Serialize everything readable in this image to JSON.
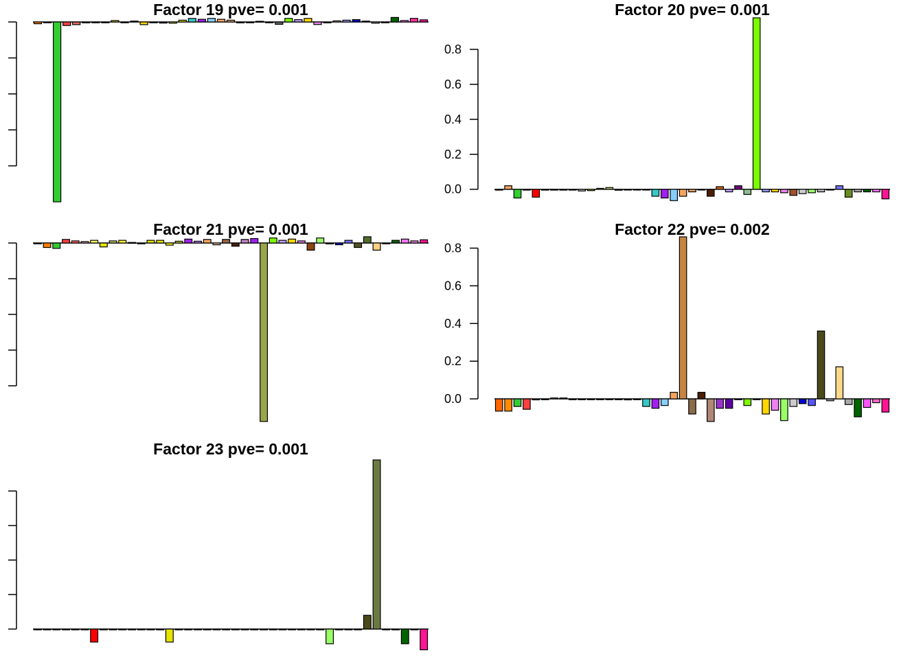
{
  "chart_data": [
    {
      "type": "bar",
      "title": "Factor 19 pve= 0.001",
      "ylim": [
        -1.0,
        0.0
      ],
      "yticks": [],
      "ytick_positions": [
        0.0,
        -0.2,
        -0.4,
        -0.6,
        -0.8
      ],
      "values": [
        -0.01,
        0.0,
        -1.0,
        -0.02,
        -0.015,
        -0.005,
        0.0,
        -0.003,
        0.008,
        -0.003,
        0.005,
        -0.015,
        -0.004,
        -0.006,
        -0.007,
        0.01,
        0.02,
        0.015,
        0.02,
        0.015,
        0.01,
        -0.005,
        0.0,
        0.004,
        0.0,
        -0.013,
        0.02,
        0.013,
        0.02,
        -0.014,
        -0.005,
        0.006,
        0.01,
        0.013,
        0.005,
        -0.007,
        0.0,
        0.025,
        0.008,
        0.02,
        0.012
      ],
      "colors": [
        "#ff7f00",
        "#ff9933",
        "#32cd32",
        "#ff4040",
        "#e07060",
        "#d2b48c",
        "#f5e6b0",
        "#e8b060",
        "#cccc33",
        "#d2c4a0",
        "#b8b8b8",
        "#ffd700",
        "#999999",
        "#444444",
        "#e5e500",
        "#cccc00",
        "#36c7c7",
        "#a020f0",
        "#87cefa",
        "#f4a460",
        "#e8a060",
        "#555555",
        "#cccccc",
        "#999966",
        "#444444",
        "#666666",
        "#7cfc00",
        "#bfa0ff",
        "#ffd700",
        "#ee82ee",
        "#cccccc",
        "#eeddcc",
        "#9999ff",
        "#0000cd",
        "#7777ff",
        "#aaaaaa",
        "#333333",
        "#006400",
        "#ff77ff",
        "#ff3399",
        "#ff1493"
      ]
    },
    {
      "type": "bar",
      "title": "Factor 20 pve= 0.001",
      "ylim": [
        -0.06,
        0.98
      ],
      "yticks": [
        "0.0",
        "0.2",
        "0.4",
        "0.6",
        "0.8"
      ],
      "ytick_positions": [
        0.0,
        0.2,
        0.4,
        0.6,
        0.8
      ],
      "values": [
        -0.005,
        0.02,
        -0.05,
        -0.005,
        -0.045,
        -0.005,
        -0.005,
        -0.005,
        -0.005,
        -0.01,
        -0.008,
        0.005,
        0.01,
        -0.006,
        -0.002,
        -0.002,
        -0.002,
        -0.04,
        -0.05,
        -0.065,
        -0.04,
        -0.015,
        0.0,
        -0.04,
        0.015,
        -0.015,
        0.02,
        -0.03,
        0.98,
        -0.015,
        -0.015,
        -0.02,
        -0.035,
        -0.025,
        -0.02,
        -0.015,
        0.0,
        0.02,
        -0.045,
        -0.015,
        -0.015,
        -0.015,
        -0.055
      ],
      "colors": [
        "#ff7f00",
        "#f4a460",
        "#32cd32",
        "#aaaaaa",
        "#ff0000",
        "#dddddd",
        "#cccccc",
        "#ffff00",
        "#cccc00",
        "#b8b8b8",
        "#99cc33",
        "#f5d050",
        "#cccc66",
        "#999999",
        "#777777",
        "#aaaaaa",
        "#bbbbbb",
        "#36c7c7",
        "#a020f0",
        "#87cefa",
        "#f4a460",
        "#e8a060",
        "#555555",
        "#4a1f00",
        "#d2691e",
        "#c0a0ff",
        "#7a0080",
        "#8fbc8f",
        "#7cfc00",
        "#9999ff",
        "#ffd700",
        "#ee82ee",
        "#a0522d",
        "#cccccc",
        "#99ff66",
        "#bbbbbb",
        "#0000cd",
        "#7777ff",
        "#6b8e23",
        "#aaaaaa",
        "#006400",
        "#ff77ff",
        "#ff1493"
      ]
    },
    {
      "type": "bar",
      "title": "Factor 21 pve= 0.001",
      "ylim": [
        -1.0,
        0.0
      ],
      "yticks": [],
      "ytick_positions": [
        0.0,
        -0.2,
        -0.4,
        -0.6,
        -0.8
      ],
      "values": [
        0.0,
        -0.025,
        -0.03,
        0.02,
        0.012,
        0.008,
        0.015,
        -0.022,
        0.012,
        0.015,
        0.003,
        0.0,
        0.015,
        0.015,
        -0.012,
        0.01,
        0.022,
        0.01,
        0.02,
        -0.01,
        0.02,
        -0.018,
        0.02,
        0.025,
        -1.0,
        0.028,
        0.015,
        0.022,
        0.012,
        -0.04,
        0.028,
        -0.005,
        -0.01,
        0.015,
        -0.025,
        0.035,
        -0.04,
        0.0,
        0.015,
        0.022,
        0.012,
        0.018
      ],
      "colors": [
        "#aaaaaa",
        "#ff7f00",
        "#32cd32",
        "#ff4040",
        "#ff6666",
        "#ffb0b0",
        "#ffff66",
        "#e5e500",
        "#cccc66",
        "#ffff33",
        "#cccccc",
        "#bbbbbb",
        "#e5e500",
        "#e5e500",
        "#ffff00",
        "#cccc33",
        "#a020f0",
        "#bb77ff",
        "#f4a460",
        "#e8c0a0",
        "#996644",
        "#4a1f00",
        "#c080c0",
        "#a020f0",
        "#9aa64a",
        "#7cfc00",
        "#bfa0ff",
        "#ffd700",
        "#ee82ee",
        "#8b4513",
        "#99ff66",
        "#cccccc",
        "#0000cd",
        "#7777ff",
        "#555522",
        "#556b2f",
        "#ffd080",
        "#aaaaaa",
        "#006400",
        "#ff77ff",
        "#ee82ee",
        "#ff1493"
      ]
    },
    {
      "type": "bar",
      "title": "Factor 22 pve= 0.002",
      "ylim": [
        -0.12,
        0.86
      ],
      "yticks": [
        "0.0",
        "0.2",
        "0.4",
        "0.6",
        "0.8"
      ],
      "ytick_positions": [
        0.0,
        0.2,
        0.4,
        0.6,
        0.8
      ],
      "values": [
        -0.065,
        -0.065,
        -0.04,
        -0.055,
        -0.005,
        0.0,
        0.005,
        0.005,
        0.0,
        0.0,
        0.0,
        0.0,
        0.0,
        0.0,
        -0.005,
        0.0,
        -0.04,
        -0.05,
        -0.035,
        0.035,
        0.86,
        -0.08,
        0.035,
        -0.12,
        -0.05,
        -0.05,
        0.0,
        -0.035,
        0.0,
        -0.08,
        -0.06,
        -0.115,
        -0.04,
        -0.025,
        -0.035,
        0.36,
        -0.01,
        0.17,
        -0.03,
        -0.095,
        -0.045,
        -0.02,
        -0.07
      ],
      "colors": [
        "#ff6600",
        "#ff8c00",
        "#32cd32",
        "#ff4040",
        "#aaaaaa",
        "#cccccc",
        "#dddddd",
        "#bbbbbb",
        "#cccccc",
        "#dddddd",
        "#cccccc",
        "#bbbbbb",
        "#aaaaaa",
        "#cccccc",
        "#999999",
        "#bbbbbb",
        "#36c7c7",
        "#a020f0",
        "#87cefa",
        "#f4a460",
        "#c68642",
        "#8b6a4a",
        "#4a1f00",
        "#b08878",
        "#9932cc",
        "#5c00a0",
        "#dddddd",
        "#7cfc00",
        "#cccccc",
        "#ffd700",
        "#ee82ee",
        "#99ff66",
        "#cccccc",
        "#0000cd",
        "#5555ff",
        "#4a4a1a",
        "#aaaaaa",
        "#ffd98a",
        "#aaaaaa",
        "#006400",
        "#ff55ff",
        "#ff66cc",
        "#ff1493"
      ]
    },
    {
      "type": "bar",
      "title": "Factor 23 pve= 0.001",
      "ylim": [
        -0.07,
        1.0
      ],
      "yticks": [],
      "ytick_positions": [
        0.0,
        0.2,
        0.4,
        0.6,
        0.8
      ],
      "values": [
        0.0,
        0.0,
        0.0,
        0.0,
        0.0,
        0.0,
        -0.075,
        0.0,
        0.0,
        0.0,
        0.0,
        0.0,
        0.0,
        0.0,
        -0.075,
        0.0,
        0.0,
        0.0,
        0.0,
        0.0,
        0.0,
        0.0,
        0.0,
        0.0,
        0.0,
        0.0,
        0.0,
        0.0,
        0.0,
        0.0,
        0.0,
        -0.085,
        0.0,
        0.0,
        0.0,
        0.08,
        0.98,
        0.0,
        0.0,
        -0.085,
        0.0,
        -0.12
      ],
      "colors": [
        "#aaaaaa",
        "#aaaaaa",
        "#aaaaaa",
        "#aaaaaa",
        "#aaaaaa",
        "#aaaaaa",
        "#ff0000",
        "#aaaaaa",
        "#aaaaaa",
        "#aaaaaa",
        "#aaaaaa",
        "#aaaaaa",
        "#aaaaaa",
        "#aaaaaa",
        "#e5e500",
        "#aaaaaa",
        "#aaaaaa",
        "#aaaaaa",
        "#aaaaaa",
        "#aaaaaa",
        "#aaaaaa",
        "#aaaaaa",
        "#aaaaaa",
        "#aaaaaa",
        "#aaaaaa",
        "#aaaaaa",
        "#aaaaaa",
        "#aaaaaa",
        "#aaaaaa",
        "#aaaaaa",
        "#aaaaaa",
        "#99ff66",
        "#aaaaaa",
        "#aaaaaa",
        "#aaaaaa",
        "#4a4a1a",
        "#6b7a42",
        "#aaaaaa",
        "#aaaaaa",
        "#006400",
        "#aaaaaa",
        "#ff1493"
      ]
    }
  ]
}
